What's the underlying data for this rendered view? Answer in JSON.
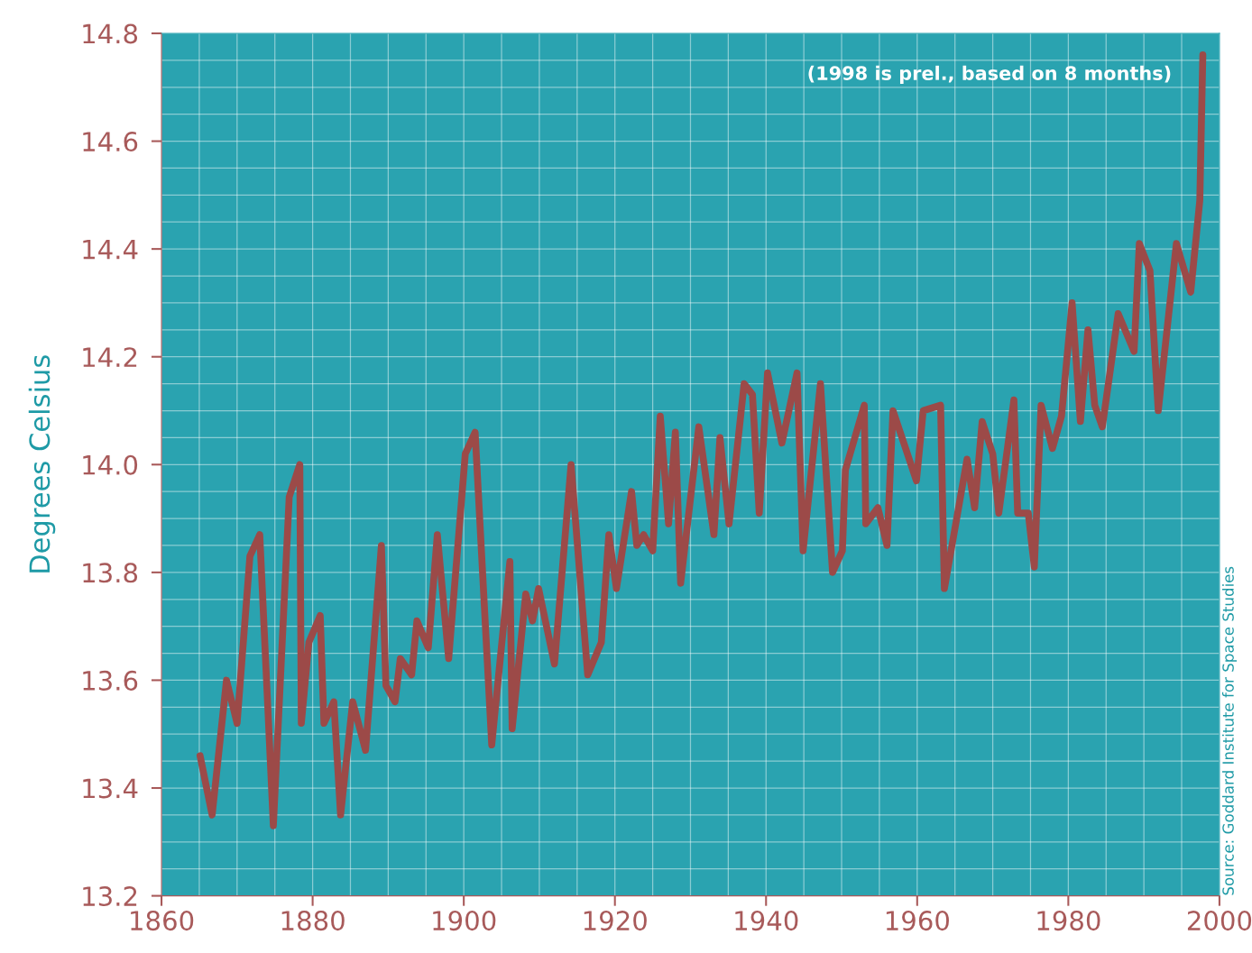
{
  "chart_data": {
    "type": "line",
    "ylabel": "Degrees Celsius",
    "annotations": [
      "(1998 is prel., based on 8 months)",
      "Source: Goddard Institute for Space Studies"
    ],
    "series": [
      {
        "color": "#9c4a48",
        "x": [
          1865.1,
          1866.7,
          1868.6,
          1870.0,
          1871.7,
          1873.0,
          1874.8,
          1876.9,
          1878.3,
          1878.5,
          1879.5,
          1881.0,
          1881.5,
          1882.8,
          1883.7,
          1885.3,
          1887.0,
          1889.1,
          1889.7,
          1890.9,
          1891.6,
          1893.1,
          1893.8,
          1895.3,
          1896.5,
          1898.0,
          1900.2,
          1901.5,
          1903.7,
          1906.1,
          1906.4,
          1908.2,
          1909.1,
          1909.9,
          1912.0,
          1914.2,
          1916.4,
          1918.2,
          1919.2,
          1920.2,
          1922.2,
          1922.9,
          1923.8,
          1925.0,
          1926.0,
          1927.1,
          1928.0,
          1928.7,
          1931.1,
          1933.1,
          1933.9,
          1935.1,
          1937.1,
          1938.2,
          1939.1,
          1940.2,
          1942.1,
          1944.1,
          1944.9,
          1947.2,
          1948.8,
          1950.1,
          1950.5,
          1953.0,
          1953.2,
          1954.8,
          1956.0,
          1956.8,
          1959.9,
          1960.8,
          1963.1,
          1963.6,
          1966.6,
          1967.6,
          1968.6,
          1970.0,
          1970.8,
          1972.8,
          1973.3,
          1974.7,
          1975.5,
          1976.4,
          1977.9,
          1979.1,
          1980.5,
          1981.6,
          1982.6,
          1983.5,
          1984.5,
          1986.6,
          1988.7,
          1989.4,
          1990.8,
          1991.9,
          1994.3,
          1996.2,
          1997.4,
          1997.8
        ],
        "values": [
          13.46,
          13.35,
          13.6,
          13.52,
          13.83,
          13.87,
          13.33,
          13.94,
          14.0,
          13.52,
          13.67,
          13.72,
          13.52,
          13.56,
          13.35,
          13.56,
          13.47,
          13.85,
          13.59,
          13.56,
          13.64,
          13.61,
          13.71,
          13.66,
          13.87,
          13.64,
          14.02,
          14.06,
          13.48,
          13.82,
          13.51,
          13.76,
          13.71,
          13.77,
          13.63,
          14.0,
          13.61,
          13.67,
          13.87,
          13.77,
          13.95,
          13.85,
          13.87,
          13.84,
          14.09,
          13.89,
          14.06,
          13.78,
          14.07,
          13.87,
          14.05,
          13.89,
          14.15,
          14.13,
          13.91,
          14.17,
          14.04,
          14.17,
          13.84,
          14.15,
          13.8,
          13.84,
          13.99,
          14.11,
          13.89,
          13.92,
          13.85,
          14.1,
          13.97,
          14.1,
          14.11,
          13.77,
          14.01,
          13.92,
          14.08,
          14.02,
          13.91,
          14.12,
          13.91,
          13.91,
          13.81,
          14.11,
          14.03,
          14.09,
          14.3,
          14.08,
          14.25,
          14.11,
          14.07,
          14.28,
          14.21,
          14.41,
          14.36,
          14.1,
          14.41,
          14.32,
          14.49,
          14.76
        ]
      }
    ],
    "xlim": [
      1860,
      2000
    ],
    "xticks": [
      1860,
      1880,
      1900,
      1920,
      1940,
      1960,
      1980,
      2000
    ],
    "ylim": [
      13.2,
      14.8
    ],
    "yticks": [
      {
        "value": 13.2,
        "label": "13.2"
      },
      {
        "value": 13.4,
        "label": "13.4"
      },
      {
        "value": 13.6,
        "label": "13.6"
      },
      {
        "value": 13.8,
        "label": "13.8"
      },
      {
        "value": 14.0,
        "label": "14.0"
      },
      {
        "value": 14.2,
        "label": "14.2"
      },
      {
        "value": 14.4,
        "label": "14.4"
      },
      {
        "value": 14.6,
        "label": "14.6"
      },
      {
        "value": 14.8,
        "label": "14.8"
      }
    ],
    "grid": true,
    "marker": "none",
    "line_style": "solid",
    "legend": false
  }
}
